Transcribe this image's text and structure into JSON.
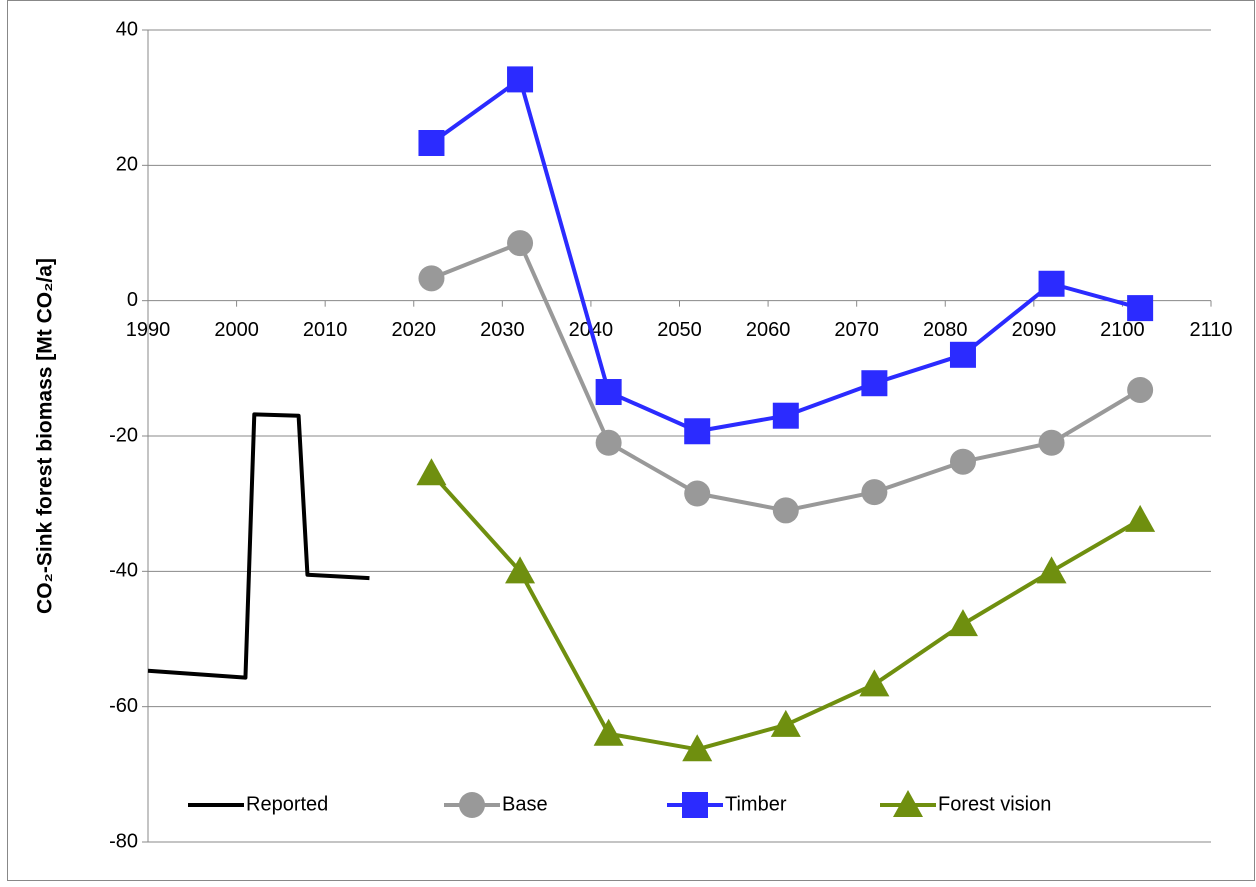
{
  "chart_data": {
    "type": "line",
    "y_label": "CO₂-Sink forest biomass [Mt CO₂/a]",
    "xlim": [
      1990,
      2110
    ],
    "xticks": [
      1990,
      2000,
      2010,
      2020,
      2030,
      2040,
      2050,
      2060,
      2070,
      2080,
      2090,
      2100,
      2110
    ],
    "ylim": [
      -80,
      40
    ],
    "yticks": [
      -80,
      -60,
      -40,
      -20,
      0,
      20,
      40
    ],
    "grid": true,
    "series": [
      {
        "name": "Reported",
        "color": "#000000",
        "marker": "none",
        "x": [
          1990,
          2001,
          2002,
          2007,
          2008,
          2015
        ],
        "values": [
          -54.7,
          -55.7,
          -16.8,
          -17,
          -40.5,
          -41
        ]
      },
      {
        "name": "Base",
        "color": "#999999",
        "marker": "circle",
        "x": [
          2022,
          2032,
          2042,
          2052,
          2062,
          2072,
          2082,
          2092,
          2102
        ],
        "values": [
          3.3,
          8.5,
          -21,
          -28.5,
          -31,
          -28.3,
          -23.8,
          -21,
          -13.2
        ]
      },
      {
        "name": "Timber",
        "color": "#2b2bff",
        "marker": "square",
        "x": [
          2022,
          2032,
          2042,
          2052,
          2062,
          2072,
          2082,
          2092,
          2102
        ],
        "values": [
          23.3,
          32.7,
          -13.5,
          -19.3,
          -17,
          -12.2,
          -8,
          2.5,
          -1.1
        ]
      },
      {
        "name": "Forest vision",
        "color": "#6f8f0f",
        "marker": "triangle",
        "x": [
          2022,
          2032,
          2042,
          2052,
          2062,
          2072,
          2082,
          2092,
          2102
        ],
        "values": [
          -25.5,
          -40,
          -64,
          -66.3,
          -62.7,
          -56.7,
          -47.8,
          -40,
          -32.4
        ]
      }
    ]
  }
}
